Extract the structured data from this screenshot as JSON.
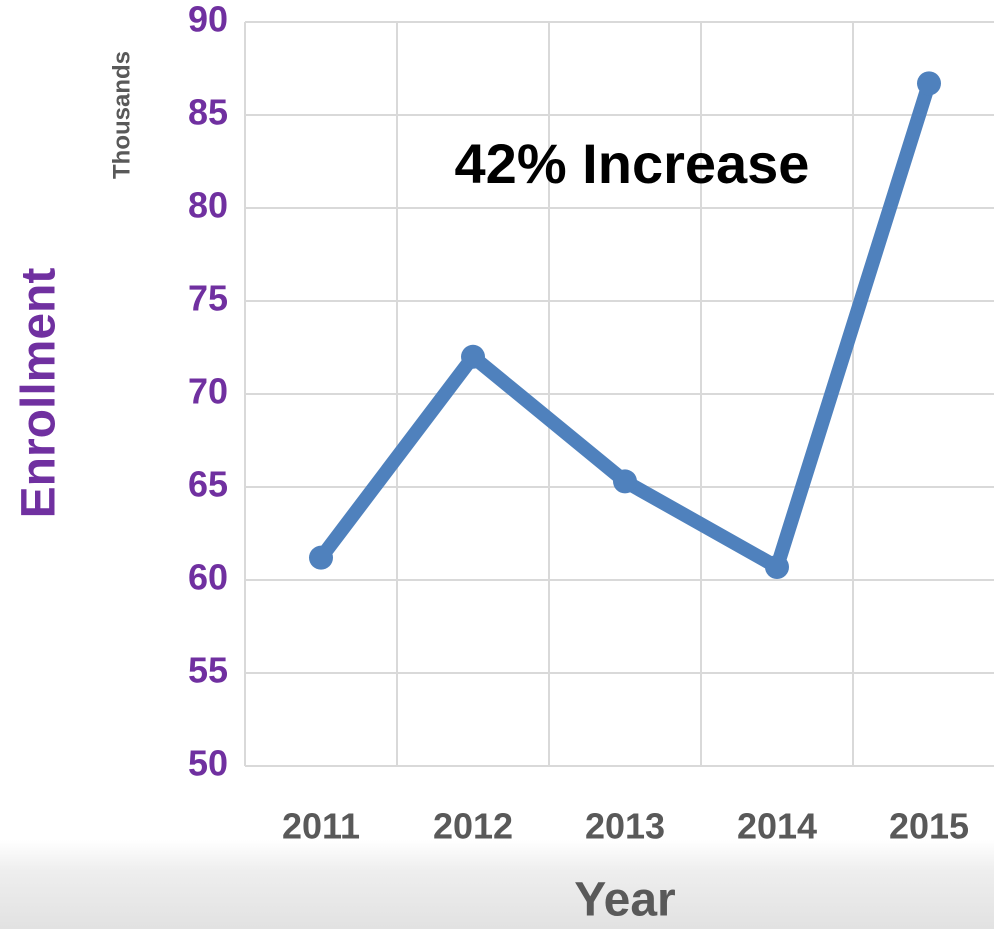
{
  "chart_data": {
    "type": "line",
    "title": "42% Increase",
    "y_label": "Enrollment",
    "y_unit": "Thousands",
    "x_label": "Year",
    "categories": [
      "2011",
      "2012",
      "2013",
      "2014",
      "2015"
    ],
    "series": [
      {
        "name": "Enrollment",
        "color": "#4f81bd",
        "values": [
          61.2,
          72,
          65.3,
          60.7,
          86.7
        ]
      }
    ],
    "ylim": [
      50,
      90
    ],
    "yticks": [
      50,
      55,
      60,
      65,
      70,
      75,
      80,
      85,
      90
    ],
    "grid": true
  }
}
